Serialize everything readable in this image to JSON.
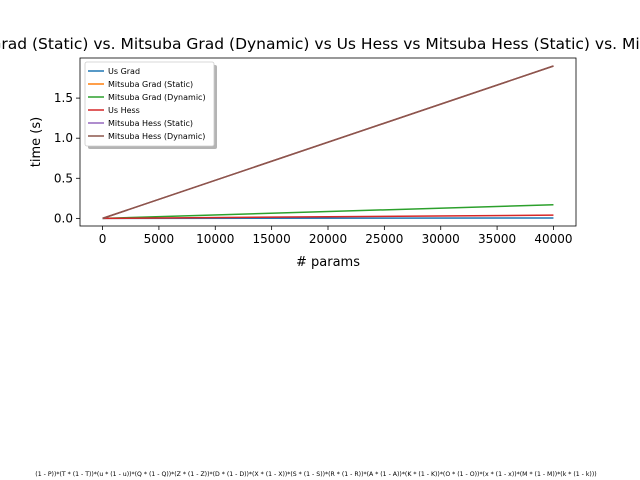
{
  "chart_data": {
    "type": "line",
    "title": "Us Grad vs. Mitsuba Grad (Static) vs. Mitsuba Grad (Dynamic) vs Us Hess vs Mitsuba Hess (Static) vs. Mitsuba Hess (Dynamic)",
    "xlabel": "# params",
    "ylabel": "time (s)",
    "xlim": [
      -2000,
      42000
    ],
    "ylim": [
      -0.095,
      2.0
    ],
    "xticks": [
      0,
      5000,
      10000,
      15000,
      20000,
      25000,
      30000,
      35000,
      40000
    ],
    "yticks": [
      0.0,
      0.5,
      1.0,
      1.5
    ],
    "xtick_labels": [
      "0",
      "5000",
      "10000",
      "15000",
      "20000",
      "25000",
      "30000",
      "35000",
      "40000"
    ],
    "ytick_labels": [
      "0.0",
      "0.5",
      "1.0",
      "1.5"
    ],
    "grid": false,
    "legend_position": "top-left",
    "x": [
      0,
      40000
    ],
    "series": [
      {
        "name": "Us Grad",
        "color": "#1f77b4",
        "values": [
          0.0,
          0.005
        ]
      },
      {
        "name": "Mitsuba Grad (Static)",
        "color": "#ff7f0e",
        "values": [
          0.0,
          1.9
        ]
      },
      {
        "name": "Mitsuba Grad (Dynamic)",
        "color": "#2ca02c",
        "values": [
          0.0,
          0.17
        ]
      },
      {
        "name": "Us Hess",
        "color": "#d62728",
        "values": [
          0.0,
          0.04
        ]
      },
      {
        "name": "Mitsuba Hess (Static)",
        "color": "#9467bd",
        "values": [
          0.0,
          1.9
        ]
      },
      {
        "name": "Mitsuba Hess (Dynamic)",
        "color": "#8c564b",
        "values": [
          0.0,
          1.9
        ]
      }
    ],
    "footer_text": "(1 - P))*(T * (1 - T))*(u * (1 - u))*(Q * (1 - Q))*(Z * (1 - Z))*(D * (1 - D))*(X * (1 - X))*(S * (1 - S))*(R * (1 - R))*(A * (1 - A))*(K * (1 - K))*(O * (1 - O))*(x * (1 - x))*(M * (1 - M))*(k * (1 - k)))"
  }
}
